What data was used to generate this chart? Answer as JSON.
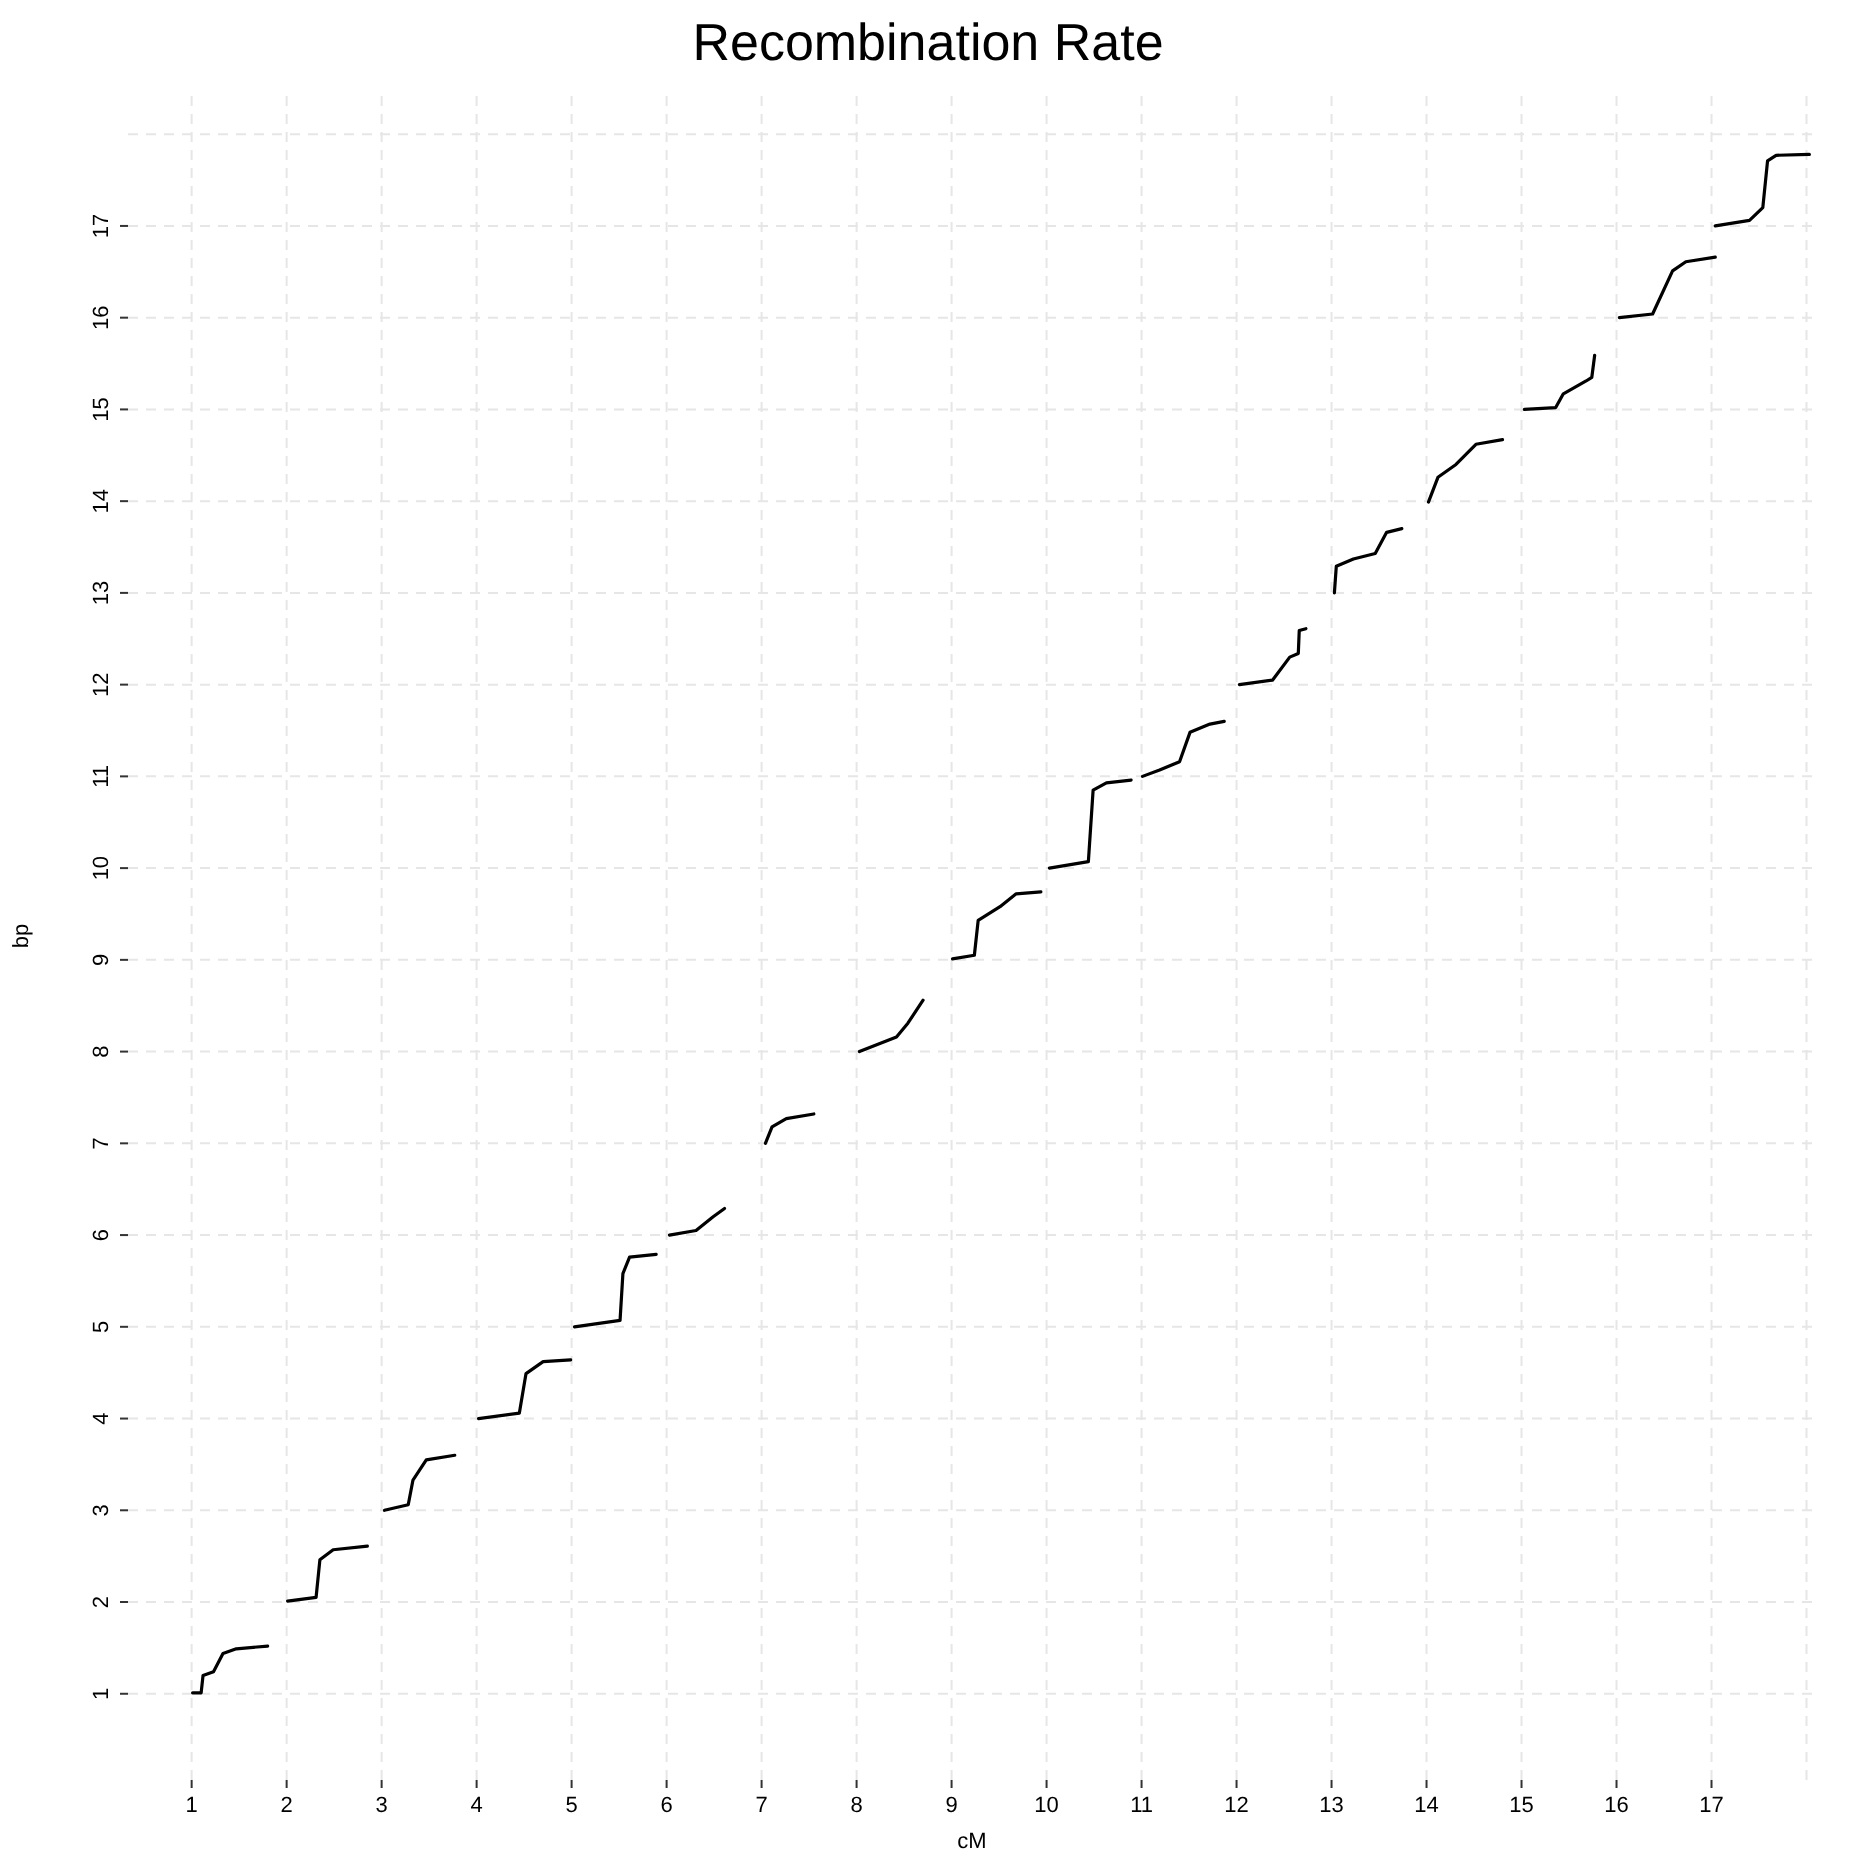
{
  "chart_data": {
    "type": "line",
    "title": "Recombination Rate",
    "xlabel": "cM",
    "ylabel": "bp",
    "xlim": [
      0.33,
      18.1
    ],
    "ylim": [
      0.06,
      18.46
    ],
    "xticks": [
      1,
      2,
      3,
      4,
      5,
      6,
      7,
      8,
      9,
      10,
      11,
      12,
      13,
      14,
      15,
      16,
      17,
      {
        "value": 18,
        "label": null
      }
    ],
    "yticks": [
      1,
      2,
      3,
      4,
      5,
      6,
      7,
      8,
      9,
      10,
      11,
      12,
      13,
      14,
      15,
      16,
      17,
      {
        "value": 18,
        "label": null
      }
    ],
    "grid": true,
    "marker": "none",
    "line_style": "solid",
    "series": [
      {
        "color": "#000000",
        "x": [
          1.01,
          1.1,
          1.12,
          1.23,
          1.33,
          1.47,
          1.8
        ],
        "values": [
          1.01,
          1.01,
          1.2,
          1.24,
          1.44,
          1.49,
          1.52
        ]
      },
      {
        "color": "#000000",
        "x": [
          2.01,
          2.31,
          2.35,
          2.49,
          2.85
        ],
        "values": [
          2.01,
          2.05,
          2.46,
          2.57,
          2.61
        ]
      },
      {
        "color": "#000000",
        "x": [
          3.03,
          3.28,
          3.33,
          3.47,
          3.77
        ],
        "values": [
          3.0,
          3.06,
          3.33,
          3.55,
          3.6
        ]
      },
      {
        "color": "#000000",
        "x": [
          4.02,
          4.45,
          4.52,
          4.7,
          4.99
        ],
        "values": [
          4.0,
          4.06,
          4.49,
          4.62,
          4.64
        ]
      },
      {
        "color": "#000000",
        "x": [
          5.03,
          5.51,
          5.54,
          5.61,
          5.89
        ],
        "values": [
          5.0,
          5.07,
          5.58,
          5.76,
          5.79
        ]
      },
      {
        "color": "#000000",
        "x": [
          6.03,
          6.31,
          6.49,
          6.61
        ],
        "values": [
          6.0,
          6.05,
          6.2,
          6.29
        ]
      },
      {
        "color": "#000000",
        "x": [
          7.04,
          7.11,
          7.26,
          7.55
        ],
        "values": [
          7.0,
          7.18,
          7.27,
          7.32
        ]
      },
      {
        "color": "#000000",
        "x": [
          8.03,
          8.42,
          8.54,
          8.7
        ],
        "values": [
          8.0,
          8.16,
          8.31,
          8.56
        ]
      },
      {
        "color": "#000000",
        "x": [
          9.01,
          9.24,
          9.28,
          9.51,
          9.68,
          9.94
        ],
        "values": [
          9.01,
          9.05,
          9.43,
          9.58,
          9.72,
          9.74
        ]
      },
      {
        "color": "#000000",
        "x": [
          10.03,
          10.44,
          10.49,
          10.63,
          10.89
        ],
        "values": [
          10.0,
          10.07,
          10.85,
          10.93,
          10.96
        ]
      },
      {
        "color": "#000000",
        "x": [
          11.01,
          11.19,
          11.4,
          11.51,
          11.72,
          11.87
        ],
        "values": [
          11.0,
          11.07,
          11.16,
          11.48,
          11.57,
          11.6
        ]
      },
      {
        "color": "#000000",
        "x": [
          12.03,
          12.38,
          12.56,
          12.65,
          12.66,
          12.73
        ],
        "values": [
          12.0,
          12.05,
          12.3,
          12.34,
          12.59,
          12.61
        ]
      },
      {
        "color": "#000000",
        "x": [
          13.03,
          13.05,
          13.23,
          13.46,
          13.58,
          13.74
        ],
        "values": [
          13.0,
          13.29,
          13.37,
          13.43,
          13.66,
          13.7
        ]
      },
      {
        "color": "#000000",
        "x": [
          14.02,
          14.12,
          14.31,
          14.52,
          14.8
        ],
        "values": [
          13.99,
          14.26,
          14.4,
          14.62,
          14.67
        ]
      },
      {
        "color": "#000000",
        "x": [
          15.03,
          15.36,
          15.44,
          15.68,
          15.74,
          15.77
        ],
        "values": [
          15.0,
          15.02,
          15.17,
          15.31,
          15.35,
          15.59
        ]
      },
      {
        "color": "#000000",
        "x": [
          16.03,
          16.38,
          16.59,
          16.73,
          17.04
        ],
        "values": [
          16.0,
          16.04,
          16.51,
          16.61,
          16.66
        ]
      },
      {
        "color": "#000000",
        "x": [
          17.04,
          17.4,
          17.54,
          17.59,
          17.68,
          18.03
        ],
        "values": [
          17.0,
          17.06,
          17.2,
          17.71,
          17.77,
          17.78
        ]
      }
    ]
  }
}
